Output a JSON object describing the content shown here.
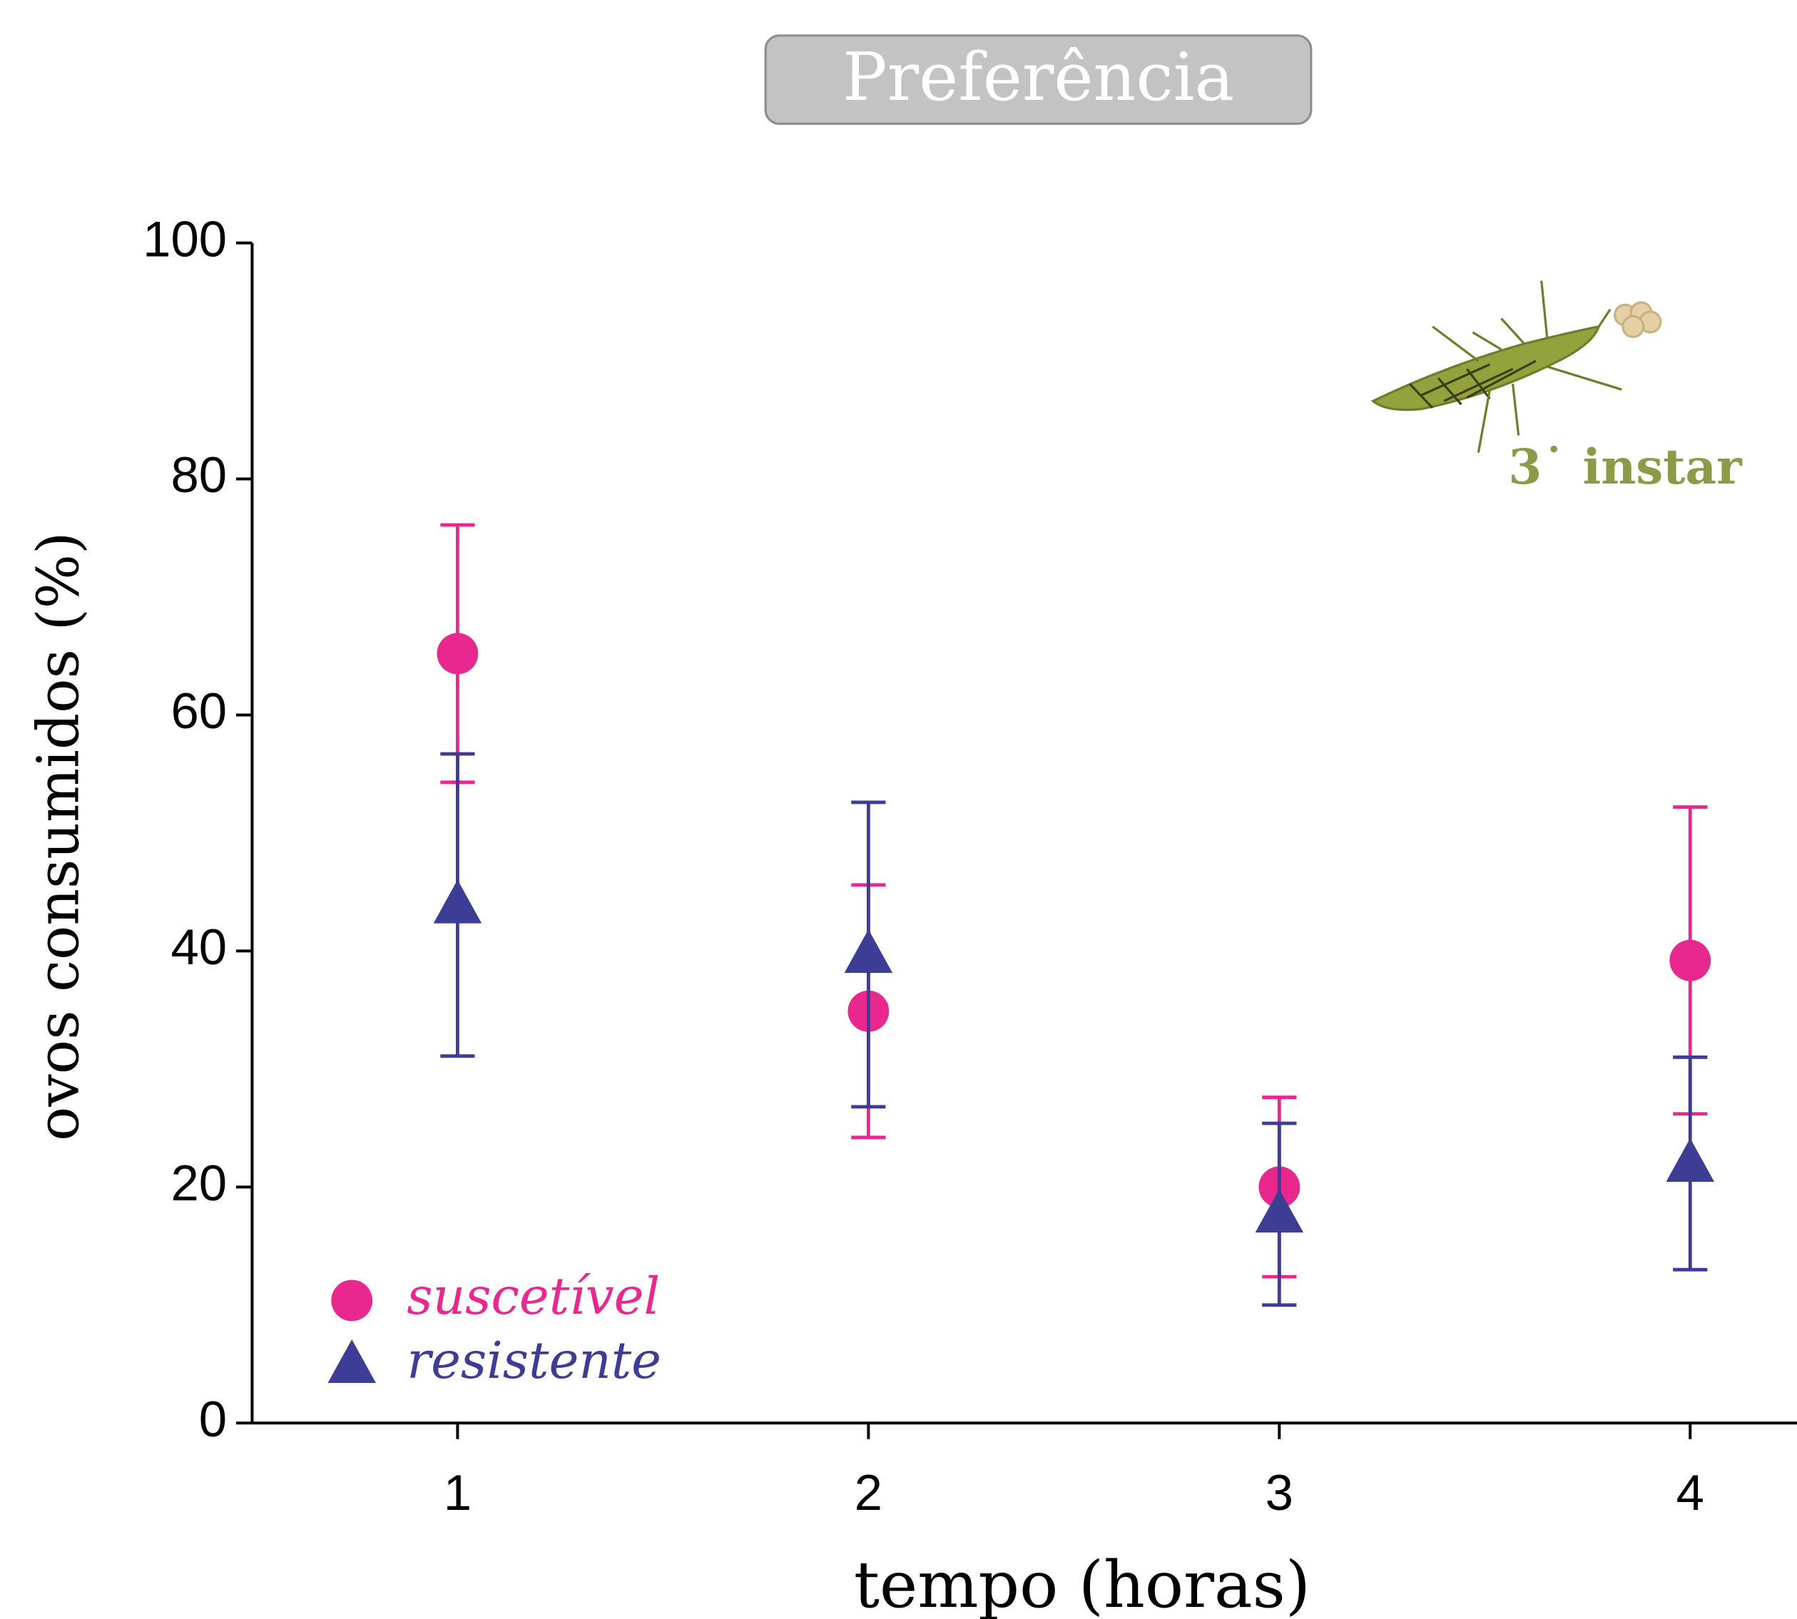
{
  "chart_data": {
    "type": "errorbar",
    "title": "Preferência",
    "annotation": "3˙ instar",
    "x_label": "tempo (horas)",
    "y_label": "ovos consumidos (%)",
    "x": [
      1,
      2,
      3,
      4
    ],
    "series": [
      {
        "name": "suscetível",
        "color": "#e8288e",
        "marker": "circle",
        "values": [
          65.2,
          34.9,
          20.0,
          39.2
        ],
        "errors": [
          10.9,
          10.7,
          7.6,
          13.0
        ]
      },
      {
        "name": "resistente",
        "color": "#3d3d96",
        "marker": "triangle",
        "values": [
          43.9,
          39.7,
          17.7,
          22.0
        ],
        "errors": [
          12.8,
          12.9,
          7.7,
          9.0
        ]
      }
    ],
    "xlim": [
      0.5,
      4.26
    ],
    "xticks": [
      1,
      2,
      3,
      4
    ],
    "ylim": [
      0,
      100
    ],
    "yticks": [
      0,
      20,
      40,
      60,
      80,
      100
    ],
    "legend": "lower left"
  }
}
